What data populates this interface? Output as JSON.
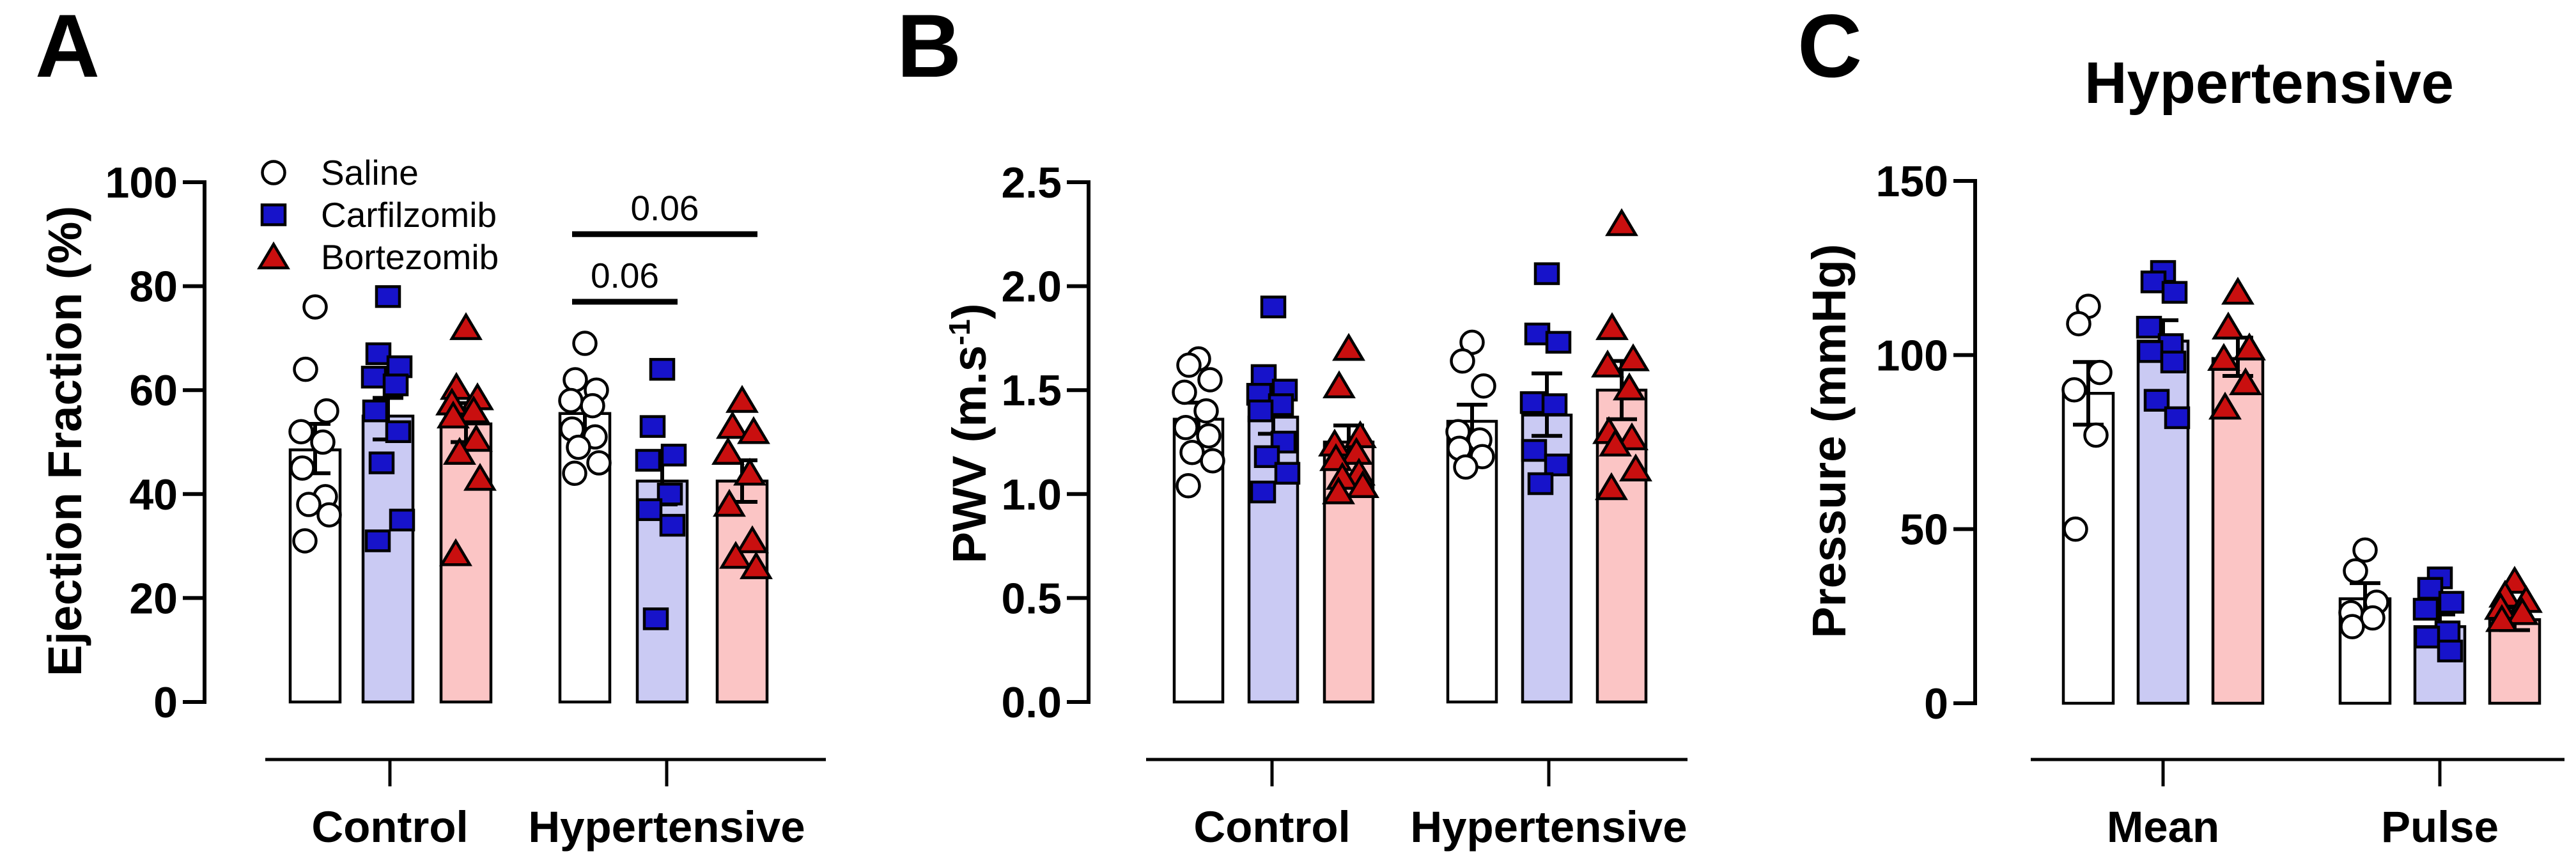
{
  "figure": {
    "description": "Three-panel bar chart figure with individual data points (GraphPad style)",
    "background": "#ffffff"
  },
  "colors": {
    "outline": "#000000",
    "saline_marker_fill": "#ffffff",
    "saline_bar_fill": "#ffffff",
    "carfilzomib_marker_fill": "#1713ca",
    "carfilzomib_bar_fill": "#cacaf3",
    "bortezomib_marker_fill": "#c90f0f",
    "bortezomib_bar_fill": "#fbc5c5"
  },
  "legend": {
    "entries": [
      {
        "label": "Saline",
        "marker": "circle"
      },
      {
        "label": "Carfilzomib",
        "marker": "square"
      },
      {
        "label": "Bortezomib",
        "marker": "triangle"
      }
    ]
  },
  "chart_data": [
    {
      "type": "bar",
      "panel_letter": "A",
      "title": "",
      "ylabel": "Ejection Fraction (%)",
      "ylim": [
        0,
        100
      ],
      "yticks": [
        "0",
        "20",
        "40",
        "60",
        "80",
        "100"
      ],
      "groups": [
        "Control",
        "Hypertensive"
      ],
      "series": [
        "Saline",
        "Carfilzomib",
        "Bortezomib"
      ],
      "show_legend": true,
      "bars": [
        {
          "group": "Control",
          "series": "Saline",
          "mean": 48.5,
          "err_low": 44,
          "err_high": 53.5,
          "points": [
            76,
            64,
            56,
            52,
            50,
            45,
            39.5,
            38,
            36,
            31
          ]
        },
        {
          "group": "Control",
          "series": "Carfilzomib",
          "mean": 55,
          "err_low": 50.5,
          "err_high": 58.5,
          "points": [
            78,
            67,
            64.5,
            62.5,
            61,
            56,
            52,
            46,
            35,
            31
          ]
        },
        {
          "group": "Control",
          "series": "Bortezomib",
          "mean": 53.5,
          "err_low": 50,
          "err_high": 57.5,
          "points": [
            72,
            60.5,
            58.5,
            57.5,
            56,
            55,
            50.5,
            48,
            43,
            28.5
          ]
        },
        {
          "group": "Hypertensive",
          "series": "Saline",
          "mean": 55.5,
          "err_low": 52.5,
          "err_high": 58,
          "points": [
            69,
            62,
            60,
            58,
            57,
            52.5,
            51,
            49,
            46,
            44
          ]
        },
        {
          "group": "Hypertensive",
          "series": "Carfilzomib",
          "mean": 42.5,
          "err_low": 38,
          "err_high": 47.5,
          "points": [
            64,
            53,
            47.5,
            46.5,
            40,
            37,
            34,
            16
          ]
        },
        {
          "group": "Hypertensive",
          "series": "Bortezomib",
          "mean": 42.5,
          "err_low": 38.5,
          "err_high": 46.5,
          "points": [
            58,
            53,
            52,
            48,
            44,
            38,
            31,
            28,
            26
          ]
        }
      ],
      "comparisons": [
        {
          "label": "0.06",
          "group": "Hypertensive",
          "from": "Saline",
          "to": "Carfilzomib",
          "y": 77
        },
        {
          "label": "0.06",
          "group": "Hypertensive",
          "from": "Saline",
          "to": "Bortezomib",
          "y": 90
        }
      ]
    },
    {
      "type": "bar",
      "panel_letter": "B",
      "title": "",
      "ylabel": "PWV (m.s⁻¹)",
      "ylim": [
        0,
        2.5
      ],
      "yticks": [
        "0.0",
        "0.5",
        "1.0",
        "1.5",
        "2.0",
        "2.5"
      ],
      "groups": [
        "Control",
        "Hypertensive"
      ],
      "series": [
        "Saline",
        "Carfilzomib",
        "Bortezomib"
      ],
      "show_legend": false,
      "bars": [
        {
          "group": "Control",
          "series": "Saline",
          "mean": 1.36,
          "err_low": 1.3,
          "err_high": 1.44,
          "points": [
            1.65,
            1.62,
            1.55,
            1.49,
            1.4,
            1.32,
            1.28,
            1.2,
            1.16,
            1.04
          ]
        },
        {
          "group": "Control",
          "series": "Carfilzomib",
          "mean": 1.37,
          "err_low": 1.29,
          "err_high": 1.47,
          "points": [
            1.9,
            1.57,
            1.5,
            1.48,
            1.43,
            1.4,
            1.25,
            1.18,
            1.1,
            1.01
          ]
        },
        {
          "group": "Control",
          "series": "Bortezomib",
          "mean": 1.25,
          "err_low": 1.17,
          "err_high": 1.33,
          "points": [
            1.7,
            1.52,
            1.28,
            1.24,
            1.2,
            1.17,
            1.1,
            1.08,
            1.04,
            1.01
          ]
        },
        {
          "group": "Hypertensive",
          "series": "Saline",
          "mean": 1.35,
          "err_low": 1.27,
          "err_high": 1.43,
          "points": [
            1.73,
            1.64,
            1.52,
            1.3,
            1.26,
            1.22,
            1.18,
            1.13
          ]
        },
        {
          "group": "Hypertensive",
          "series": "Carfilzomib",
          "mean": 1.38,
          "err_low": 1.28,
          "err_high": 1.58,
          "points": [
            2.06,
            1.77,
            1.73,
            1.44,
            1.43,
            1.21,
            1.14,
            1.05
          ]
        },
        {
          "group": "Hypertensive",
          "series": "Bortezomib",
          "mean": 1.5,
          "err_low": 1.36,
          "err_high": 1.64,
          "points": [
            2.3,
            1.8,
            1.65,
            1.62,
            1.51,
            1.3,
            1.27,
            1.24,
            1.12,
            1.03
          ]
        }
      ],
      "comparisons": []
    },
    {
      "type": "bar",
      "panel_letter": "C",
      "title": "Hypertensive",
      "ylabel": "Pressure (mmHg)",
      "ylim": [
        0,
        150
      ],
      "yticks": [
        "0",
        "50",
        "100",
        "150"
      ],
      "groups": [
        "Mean",
        "Pulse"
      ],
      "series": [
        "Saline",
        "Carfilzomib",
        "Bortezomib"
      ],
      "show_legend": false,
      "bars": [
        {
          "group": "Mean",
          "series": "Saline",
          "mean": 89,
          "err_low": 80,
          "err_high": 98,
          "points": [
            114,
            109,
            95,
            90,
            77,
            50
          ]
        },
        {
          "group": "Mean",
          "series": "Carfilzomib",
          "mean": 104,
          "err_low": 99,
          "err_high": 110,
          "points": [
            124,
            121,
            118,
            108,
            103,
            101,
            98,
            87,
            82
          ]
        },
        {
          "group": "Mean",
          "series": "Bortezomib",
          "mean": 99,
          "err_low": 94,
          "err_high": 105,
          "points": [
            118,
            108,
            102,
            99,
            92,
            85
          ]
        },
        {
          "group": "Pulse",
          "series": "Saline",
          "mean": 30,
          "err_low": 26,
          "err_high": 34.5,
          "points": [
            44,
            38,
            29,
            26,
            24.5,
            22
          ]
        },
        {
          "group": "Pulse",
          "series": "Carfilzomib",
          "mean": 22,
          "err_low": 18.5,
          "err_high": 25.5,
          "points": [
            36,
            33,
            29,
            27,
            20.5,
            19,
            15
          ]
        },
        {
          "group": "Pulse",
          "series": "Bortezomib",
          "mean": 24,
          "err_low": 21,
          "err_high": 27.5,
          "points": [
            35,
            31,
            29.5,
            27.5,
            26,
            24
          ]
        }
      ],
      "comparisons": []
    }
  ]
}
